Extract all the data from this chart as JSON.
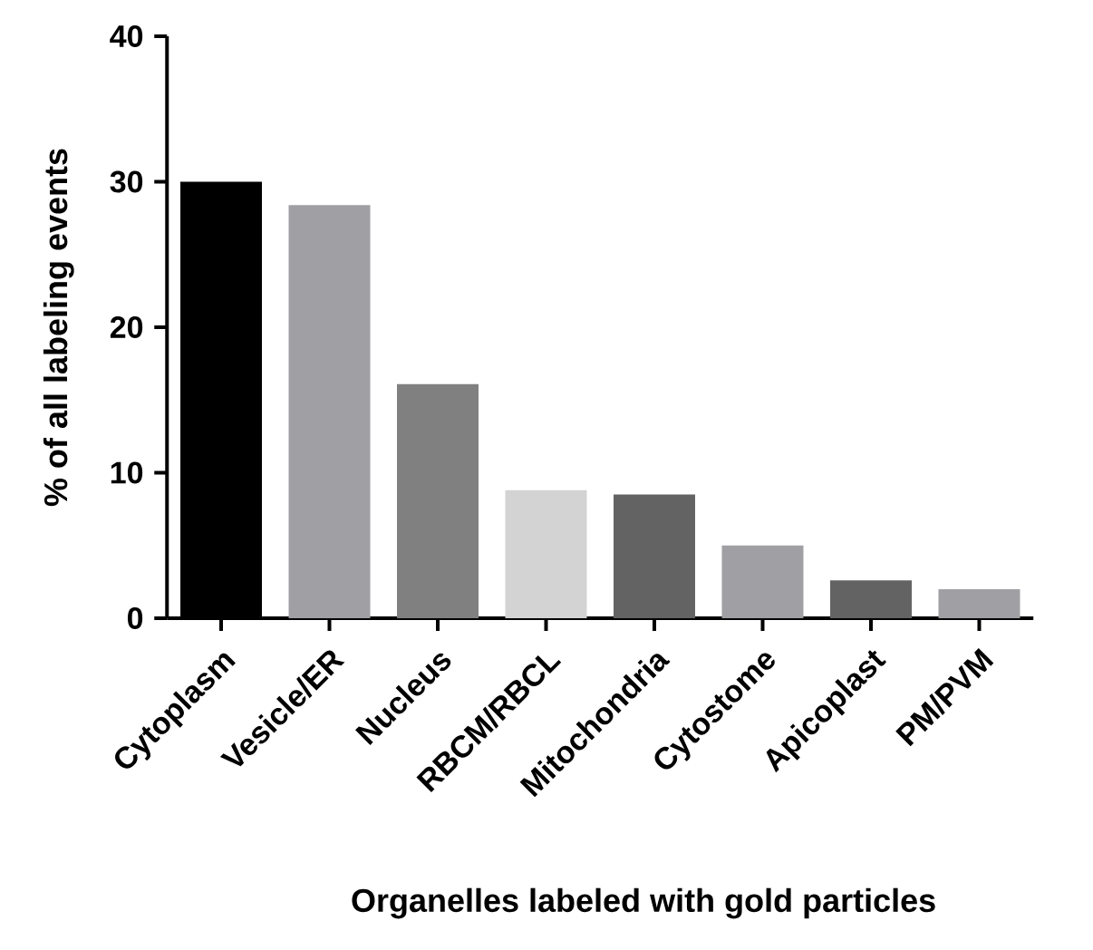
{
  "chart_data": {
    "type": "bar",
    "xlabel": "Organelles labeled with gold particles",
    "ylabel": "% of all labeling events",
    "categories": [
      "Cytoplasm",
      "Vesicle/ER",
      "Nucleus",
      "RBCM/RBCL",
      "Mitochondria",
      "Cytostome",
      "Apicoplast",
      "PM/PVM"
    ],
    "values": [
      30.0,
      28.4,
      16.1,
      8.8,
      8.5,
      5.0,
      2.6,
      2.0
    ],
    "colors": [
      "#000000",
      "#a0a0a4",
      "#808080",
      "#d3d3d3",
      "#636363",
      "#a0a0a4",
      "#636363",
      "#a0a0a4"
    ],
    "ylim": [
      0,
      40
    ],
    "yticks": [
      0,
      10,
      20,
      30,
      40
    ],
    "grid": false
  }
}
